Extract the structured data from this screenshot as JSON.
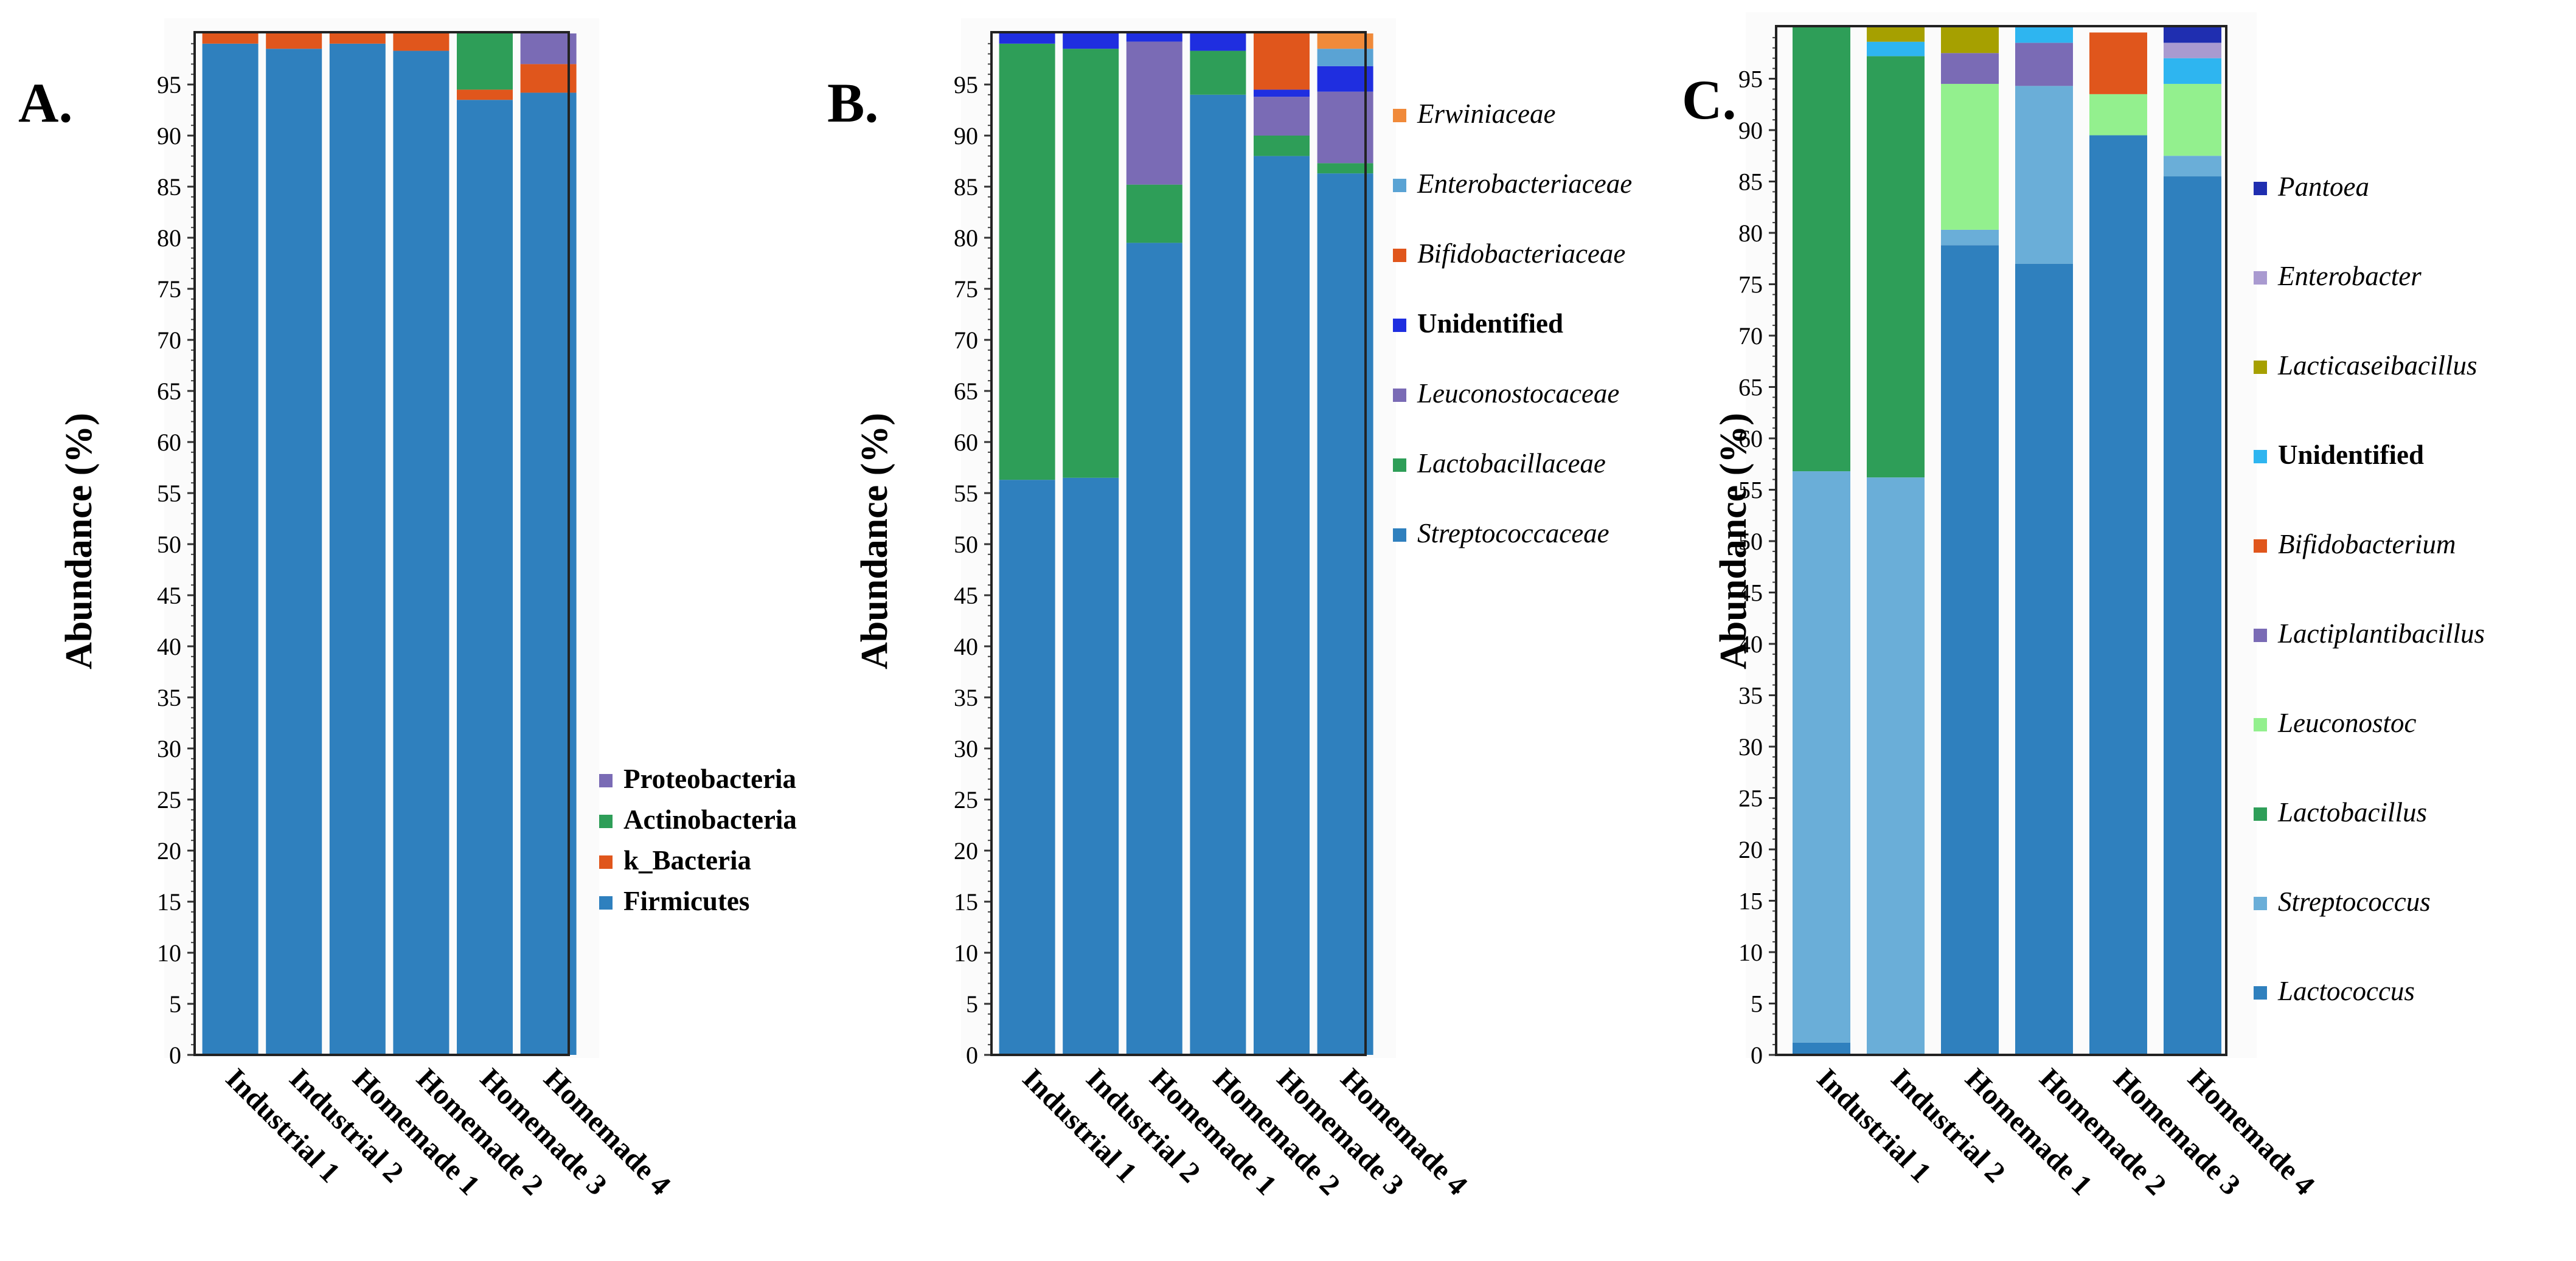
{
  "charts": {
    "ylabel": "Abundance (%)",
    "categories": [
      "Industrial 1",
      "Industrial 2",
      "Homemade 1",
      "Homemade 2",
      "Homemade 3",
      "Homemade 4"
    ]
  },
  "chart_data": [
    {
      "type": "bar",
      "stacked": true,
      "panel_label": "A.",
      "categories": [
        "Industrial 1",
        "Industrial 2",
        "Homemade 1",
        "Homemade 2",
        "Homemade 3",
        "Homemade 4"
      ],
      "ylabel": "Abundance (%)",
      "ylim": [
        0,
        100
      ],
      "yticks": [
        0,
        5,
        10,
        15,
        20,
        25,
        30,
        35,
        40,
        45,
        50,
        55,
        60,
        65,
        70,
        75,
        80,
        85,
        90,
        95
      ],
      "legend_position": "bottom-right",
      "series": [
        {
          "name": "Firmicutes",
          "color": "#2f80be",
          "values": [
            99.0,
            98.5,
            99.0,
            98.3,
            93.5,
            94.2
          ]
        },
        {
          "name": "k_Bacteria",
          "color": "#e0561c",
          "values": [
            1.0,
            1.5,
            1.0,
            1.7,
            1.0,
            2.8
          ]
        },
        {
          "name": "Actinobacteria",
          "color": "#2e9e58",
          "values": [
            0,
            0,
            0,
            0,
            5.5,
            0
          ]
        },
        {
          "name": "Proteobacteria",
          "color": "#7a6bb5",
          "values": [
            0,
            0,
            0,
            0,
            0,
            3.0
          ]
        }
      ]
    },
    {
      "type": "bar",
      "stacked": true,
      "panel_label": "B.",
      "categories": [
        "Industrial 1",
        "Industrial 2",
        "Homemade 1",
        "Homemade 2",
        "Homemade 3",
        "Homemade 4"
      ],
      "ylabel": "Abundance (%)",
      "ylim": [
        0,
        100
      ],
      "yticks": [
        0,
        5,
        10,
        15,
        20,
        25,
        30,
        35,
        40,
        45,
        50,
        55,
        60,
        65,
        70,
        75,
        80,
        85,
        90,
        95
      ],
      "legend_position": "right",
      "series": [
        {
          "name": "Streptococcaceae",
          "italic": true,
          "color": "#2f80be",
          "values": [
            56.3,
            56.5,
            79.5,
            94.0,
            88.0,
            86.3
          ]
        },
        {
          "name": "Lactobacillaceae",
          "italic": true,
          "color": "#2e9e58",
          "values": [
            42.7,
            42.0,
            5.7,
            4.3,
            2.0,
            1.0
          ]
        },
        {
          "name": "Leuconostocaceae",
          "italic": true,
          "color": "#7a6bb5",
          "values": [
            0,
            0,
            14.0,
            0,
            3.8,
            7.0
          ]
        },
        {
          "name": "Unidentified",
          "italic": false,
          "color": "#1f2ee0",
          "values": [
            1.0,
            1.5,
            0.8,
            1.7,
            0.7,
            2.5
          ]
        },
        {
          "name": "Bifidobacteriaceae",
          "italic": true,
          "color": "#e0561c",
          "values": [
            0,
            0,
            0,
            0,
            5.5,
            0
          ]
        },
        {
          "name": "Enterobacteriaceae",
          "italic": true,
          "color": "#5aa3d4",
          "values": [
            0,
            0,
            0,
            0,
            0,
            1.7
          ]
        },
        {
          "name": "Erwiniaceae",
          "italic": true,
          "color": "#f08a3a",
          "values": [
            0,
            0,
            0,
            0,
            0,
            1.5
          ]
        }
      ]
    },
    {
      "type": "bar",
      "stacked": true,
      "panel_label": "C.",
      "categories": [
        "Industrial 1",
        "Industrial 2",
        "Homemade 1",
        "Homemade 2",
        "Homemade 3",
        "Homemade 4"
      ],
      "ylabel": "Abundance (%)",
      "ylim": [
        0,
        100
      ],
      "yticks": [
        0,
        5,
        10,
        15,
        20,
        25,
        30,
        35,
        40,
        45,
        50,
        55,
        60,
        65,
        70,
        75,
        80,
        85,
        90,
        95
      ],
      "legend_position": "right",
      "series": [
        {
          "name": "Lactococcus",
          "italic": true,
          "color": "#2f80be",
          "values": [
            1.2,
            0,
            78.8,
            77.0,
            89.5,
            85.5
          ]
        },
        {
          "name": "Streptococcus",
          "italic": true,
          "color": "#6aaed8",
          "values": [
            55.6,
            56.2,
            1.5,
            17.3,
            0,
            2.0
          ]
        },
        {
          "name": "Lactobacillus",
          "italic": true,
          "color": "#2e9e58",
          "values": [
            43.2,
            41.0,
            0,
            0,
            0,
            0
          ]
        },
        {
          "name": "Leuconostoc",
          "italic": true,
          "color": "#93f08e",
          "values": [
            0,
            0,
            14.2,
            0,
            4.0,
            7.0
          ]
        },
        {
          "name": "Lactiplantibacillus",
          "italic": true,
          "color": "#7a6bb5",
          "values": [
            0,
            0,
            3.0,
            4.2,
            0,
            0
          ]
        },
        {
          "name": "Bifidobacterium",
          "italic": true,
          "color": "#e0561c",
          "values": [
            0,
            0,
            0,
            0,
            6.0,
            0
          ]
        },
        {
          "name": "Unidentified",
          "italic": false,
          "color": "#2eb5f0",
          "values": [
            0,
            1.4,
            0,
            1.5,
            0,
            2.5
          ]
        },
        {
          "name": "Lacticaseibacillus",
          "italic": true,
          "color": "#a6a000",
          "values": [
            0,
            1.4,
            2.5,
            0,
            0,
            0
          ]
        },
        {
          "name": "Enterobacter",
          "italic": true,
          "color": "#a99ad0",
          "values": [
            0,
            0,
            0,
            0,
            0,
            1.5
          ]
        },
        {
          "name": "Pantoea",
          "italic": true,
          "color": "#1f2eb0",
          "values": [
            0,
            0,
            0,
            0,
            0,
            1.5
          ]
        }
      ]
    }
  ]
}
